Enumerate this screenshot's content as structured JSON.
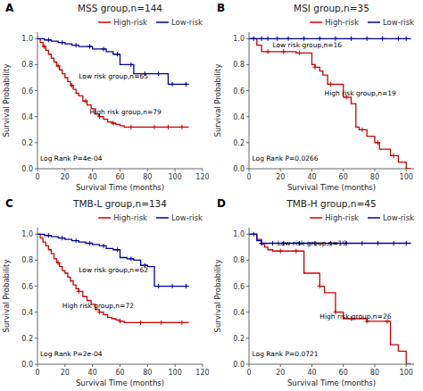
{
  "chart_data": [
    {
      "type": "step",
      "label": "A",
      "title": "MSS group,n=144",
      "x_label": "Survival Time (months)",
      "y_label": "Survival Probability",
      "xlim": [
        0,
        120
      ],
      "xticks": [
        0,
        20,
        40,
        60,
        80,
        100,
        120
      ],
      "ylim": [
        0.0,
        1.05
      ],
      "yticks": [
        {
          "value": 0.0,
          "label": "0.0"
        },
        0.2,
        0.4,
        0.6,
        0.8,
        {
          "value": 1.0,
          "label": "1.0"
        }
      ],
      "grid": false,
      "legend": "upper right",
      "annotations": [
        {
          "text": "High risk group,n=79",
          "x": 38,
          "y": 0.42
        },
        {
          "text": "Low risk group,n=65",
          "x": 30,
          "y": 0.69
        },
        {
          "text": "Log Rank P=4e-04",
          "x": 2,
          "y": 0.06
        }
      ],
      "series": [
        {
          "name": "High-risk",
          "color": "#CC0000",
          "x": [
            0,
            2,
            4,
            6,
            8,
            10,
            12,
            14,
            16,
            18,
            20,
            22,
            24,
            26,
            28,
            30,
            33,
            36,
            39,
            42,
            45,
            48,
            51,
            54,
            57,
            60,
            63,
            65,
            110
          ],
          "values": [
            1.0,
            0.97,
            0.94,
            0.91,
            0.88,
            0.85,
            0.82,
            0.79,
            0.76,
            0.73,
            0.7,
            0.67,
            0.64,
            0.61,
            0.58,
            0.56,
            0.52,
            0.49,
            0.46,
            0.42,
            0.4,
            0.38,
            0.36,
            0.35,
            0.34,
            0.33,
            0.32,
            0.32,
            0.32
          ],
          "censors": {
            "x": [
              5,
              15,
              25,
              35,
              45,
              55,
              68,
              85,
              95,
              105
            ],
            "values": [
              0.94,
              0.79,
              0.64,
              0.52,
              0.4,
              0.35,
              0.32,
              0.32,
              0.32,
              0.32
            ]
          }
        },
        {
          "name": "Low-risk",
          "color": "#000099",
          "x": [
            0,
            5,
            10,
            15,
            20,
            25,
            30,
            40,
            50,
            55,
            60,
            65,
            70,
            75,
            80,
            85,
            90,
            95,
            100,
            105,
            110
          ],
          "values": [
            1.0,
            0.99,
            0.98,
            0.97,
            0.96,
            0.95,
            0.94,
            0.92,
            0.9,
            0.88,
            0.8,
            0.8,
            0.73,
            0.73,
            0.73,
            0.73,
            0.73,
            0.65,
            0.65,
            0.65,
            0.65
          ],
          "censors": {
            "x": [
              8,
              18,
              28,
              38,
              48,
              58,
              68,
              78,
              88,
              98,
              108
            ],
            "values": [
              0.99,
              0.97,
              0.95,
              0.94,
              0.92,
              0.88,
              0.8,
              0.73,
              0.73,
              0.65,
              0.65
            ]
          }
        }
      ]
    },
    {
      "type": "step",
      "label": "B",
      "title": "MSI group,n=35",
      "x_label": "Survival Time (months)",
      "y_label": "Survival Probability",
      "xlim": [
        0,
        105
      ],
      "xticks": [
        0,
        20,
        40,
        60,
        80,
        100
      ],
      "ylim": [
        0.0,
        1.05
      ],
      "yticks": [
        {
          "value": 0.0,
          "label": "0.0"
        },
        0.2,
        0.4,
        0.6,
        0.8,
        {
          "value": 1.0,
          "label": "1.0"
        }
      ],
      "grid": false,
      "legend": "upper right",
      "annotations": [
        {
          "text": "High risk group,n=19",
          "x": 48,
          "y": 0.56
        },
        {
          "text": "Low risk group,n=16",
          "x": 15,
          "y": 0.93
        },
        {
          "text": "Log Rank P=0.0266",
          "x": 2,
          "y": 0.06
        }
      ],
      "series": [
        {
          "name": "High-risk",
          "color": "#CC0000",
          "x": [
            0,
            5,
            8,
            10,
            15,
            20,
            25,
            30,
            35,
            40,
            42,
            45,
            47,
            50,
            55,
            60,
            65,
            68,
            70,
            75,
            80,
            83,
            85,
            90,
            95,
            100,
            103
          ],
          "values": [
            1.0,
            0.95,
            0.9,
            0.9,
            0.9,
            0.9,
            0.9,
            0.89,
            0.89,
            0.8,
            0.78,
            0.75,
            0.72,
            0.65,
            0.65,
            0.55,
            0.5,
            0.32,
            0.3,
            0.25,
            0.2,
            0.15,
            0.15,
            0.1,
            0.05,
            0.0,
            0.0
          ],
          "censors": {
            "x": [
              12,
              22,
              32,
              42,
              52,
              62,
              72,
              82,
              92
            ],
            "values": [
              0.9,
              0.9,
              0.89,
              0.78,
              0.65,
              0.55,
              0.3,
              0.2,
              0.1
            ]
          }
        },
        {
          "name": "Low-risk",
          "color": "#000099",
          "x": [
            0,
            5,
            10,
            15,
            20,
            30,
            40,
            50,
            60,
            70,
            80,
            90,
            100,
            103
          ],
          "values": [
            1.0,
            1.0,
            1.0,
            1.0,
            1.0,
            1.0,
            1.0,
            1.0,
            1.0,
            1.0,
            1.0,
            1.0,
            1.0,
            1.0
          ],
          "censors": {
            "x": [
              3,
              8,
              12,
              18,
              25,
              35,
              45,
              55,
              65,
              75,
              85,
              95,
              100
            ],
            "values": [
              1.0,
              1.0,
              1.0,
              1.0,
              1.0,
              1.0,
              1.0,
              1.0,
              1.0,
              1.0,
              1.0,
              1.0,
              1.0
            ]
          }
        }
      ]
    },
    {
      "type": "step",
      "label": "C",
      "title": "TMB-L group,n=134",
      "x_label": "Survival Time (months)",
      "y_label": "Survival Probability",
      "xlim": [
        0,
        120
      ],
      "xticks": [
        0,
        20,
        40,
        60,
        80,
        100,
        120
      ],
      "ylim": [
        0.0,
        1.05
      ],
      "yticks": [
        {
          "value": 0.0,
          "label": "0.0"
        },
        0.2,
        0.4,
        0.6,
        0.8,
        {
          "value": 1.0,
          "label": "1.0"
        }
      ],
      "grid": false,
      "legend": "upper right",
      "annotations": [
        {
          "text": "High risk group,n=72",
          "x": 18,
          "y": 0.43
        },
        {
          "text": "Low risk group,n=62",
          "x": 30,
          "y": 0.71
        },
        {
          "text": "Log Rank P=2e-04",
          "x": 2,
          "y": 0.06
        }
      ],
      "series": [
        {
          "name": "High-risk",
          "color": "#CC0000",
          "x": [
            0,
            2,
            4,
            6,
            8,
            10,
            12,
            14,
            16,
            18,
            20,
            22,
            24,
            26,
            28,
            30,
            33,
            36,
            39,
            42,
            45,
            48,
            51,
            54,
            57,
            60,
            63,
            65,
            110
          ],
          "values": [
            1.0,
            0.97,
            0.94,
            0.91,
            0.88,
            0.85,
            0.81,
            0.78,
            0.75,
            0.72,
            0.7,
            0.67,
            0.64,
            0.61,
            0.58,
            0.56,
            0.52,
            0.49,
            0.46,
            0.42,
            0.4,
            0.38,
            0.36,
            0.35,
            0.34,
            0.33,
            0.32,
            0.32,
            0.32
          ],
          "censors": {
            "x": [
              15,
              30,
              45,
              60,
              75,
              90,
              105
            ],
            "values": [
              0.78,
              0.56,
              0.4,
              0.33,
              0.32,
              0.32,
              0.32
            ]
          }
        },
        {
          "name": "Low-risk",
          "color": "#000099",
          "x": [
            0,
            5,
            10,
            15,
            20,
            25,
            30,
            35,
            40,
            45,
            50,
            55,
            60,
            65,
            70,
            75,
            80,
            85,
            90,
            95,
            100,
            105,
            110
          ],
          "values": [
            1.0,
            0.99,
            0.98,
            0.97,
            0.96,
            0.95,
            0.94,
            0.93,
            0.92,
            0.91,
            0.89,
            0.88,
            0.82,
            0.81,
            0.8,
            0.76,
            0.75,
            0.6,
            0.6,
            0.6,
            0.6,
            0.6,
            0.6
          ],
          "censors": {
            "x": [
              8,
              18,
              28,
              38,
              48,
              58,
              68,
              78,
              88,
              98,
              108
            ],
            "values": [
              0.99,
              0.97,
              0.95,
              0.93,
              0.91,
              0.88,
              0.81,
              0.76,
              0.6,
              0.6,
              0.6
            ]
          }
        }
      ]
    },
    {
      "type": "step",
      "label": "D",
      "title": "TMB-H group,n=45",
      "x_label": "Survival Time (months)",
      "y_label": "Survival Probability",
      "xlim": [
        0,
        105
      ],
      "xticks": [
        0,
        20,
        40,
        60,
        80,
        100
      ],
      "ylim": [
        0.0,
        1.05
      ],
      "yticks": [
        {
          "value": 0.0,
          "label": "0.0"
        },
        0.2,
        0.4,
        0.6,
        0.8,
        {
          "value": 1.0,
          "label": "1.0"
        }
      ],
      "grid": false,
      "legend": "upper right",
      "annotations": [
        {
          "text": "High risk group,n=26",
          "x": 45,
          "y": 0.35
        },
        {
          "text": "Low risk group,n=19",
          "x": 18,
          "y": 0.91
        },
        {
          "text": "Log Rank P=0.0721",
          "x": 2,
          "y": 0.06
        }
      ],
      "series": [
        {
          "name": "High-risk",
          "color": "#CC0000",
          "x": [
            0,
            5,
            8,
            10,
            12,
            15,
            18,
            20,
            25,
            30,
            33,
            35,
            38,
            40,
            42,
            45,
            48,
            50,
            55,
            60,
            63,
            65,
            70,
            75,
            80,
            83,
            85,
            90,
            95,
            100,
            103
          ],
          "values": [
            1.0,
            0.96,
            0.92,
            0.9,
            0.88,
            0.87,
            0.87,
            0.87,
            0.87,
            0.87,
            0.87,
            0.7,
            0.7,
            0.7,
            0.7,
            0.6,
            0.55,
            0.55,
            0.4,
            0.35,
            0.35,
            0.35,
            0.35,
            0.33,
            0.33,
            0.33,
            0.33,
            0.15,
            0.1,
            0.0,
            0.0
          ],
          "censors": {
            "x": [
              20,
              30,
              45,
              55,
              65,
              75,
              88
            ],
            "values": [
              0.87,
              0.87,
              0.6,
              0.4,
              0.35,
              0.33,
              0.33
            ]
          }
        },
        {
          "name": "Low-risk",
          "color": "#000099",
          "x": [
            0,
            5,
            8,
            10,
            12,
            15,
            20,
            25,
            30,
            40,
            50,
            60,
            70,
            80,
            90,
            100,
            103
          ],
          "values": [
            1.0,
            0.95,
            0.93,
            0.93,
            0.93,
            0.93,
            0.93,
            0.93,
            0.93,
            0.93,
            0.93,
            0.93,
            0.93,
            0.93,
            0.93,
            0.93,
            0.93
          ],
          "censors": {
            "x": [
              3,
              8,
              15,
              22,
              32,
              42,
              52,
              62,
              72,
              82,
              92,
              100
            ],
            "values": [
              1.0,
              0.93,
              0.93,
              0.93,
              0.93,
              0.93,
              0.93,
              0.93,
              0.93,
              0.93,
              0.93,
              0.93
            ]
          }
        }
      ]
    }
  ]
}
